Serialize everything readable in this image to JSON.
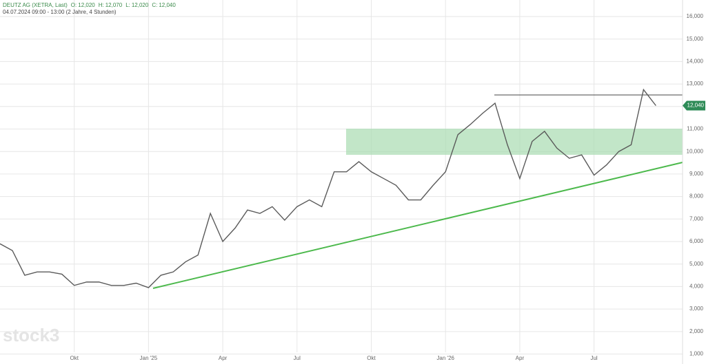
{
  "chart_data": {
    "type": "line",
    "title": "DEUTZ AG (XETRA, Last)",
    "ohlc": [
      {
        "label": "O:",
        "value": "12,020"
      },
      {
        "label": "H:",
        "value": "12,070"
      },
      {
        "label": "L:",
        "value": "12,020"
      },
      {
        "label": "C:",
        "value": "12,040"
      }
    ],
    "subtitle": "04.07.2024 09:00 - 13:00  (2 Jahre, 4 Stunden)",
    "watermark": "stock3",
    "categories": [
      null,
      null,
      null,
      null,
      null,
      null,
      "Okt",
      null,
      null,
      null,
      null,
      null,
      "Jan '25",
      null,
      null,
      null,
      null,
      null,
      "Apr",
      null,
      null,
      null,
      null,
      null,
      "Jul",
      null,
      null,
      null,
      null,
      null,
      "Okt",
      null,
      null,
      null,
      null,
      null,
      "Jan '26",
      null,
      null,
      null,
      null,
      null,
      "Apr",
      null,
      null,
      null,
      null,
      null,
      "Jul",
      null,
      null,
      null,
      null,
      null
    ],
    "series": [
      {
        "color": "#5a5a5a",
        "values": [
          5.9,
          5.6,
          4.5,
          4.65,
          4.65,
          4.55,
          4.05,
          4.2,
          4.2,
          4.05,
          4.05,
          4.15,
          3.95,
          4.5,
          4.65,
          5.1,
          5.4,
          7.25,
          6.0,
          6.6,
          7.4,
          7.25,
          7.55,
          6.95,
          7.55,
          7.85,
          7.55,
          9.1,
          9.1,
          9.55,
          9.1,
          8.8,
          8.5,
          7.85,
          7.85,
          8.5,
          9.1,
          10.75,
          11.2,
          11.7,
          12.15,
          10.3,
          8.8,
          10.45,
          10.9,
          10.15,
          9.7,
          9.85,
          8.95,
          9.4,
          10.0,
          10.3,
          12.75,
          12.04
        ]
      }
    ],
    "last_price": {
      "value": 12.04,
      "label": "12,040"
    },
    "ylim": [
      0.557,
      16.734
    ],
    "yticks": [
      {
        "value": 1,
        "label": "1,000"
      },
      {
        "value": 2,
        "label": "2,000"
      },
      {
        "value": 3,
        "label": "3,000"
      },
      {
        "value": 4,
        "label": "4,000"
      },
      {
        "value": 5,
        "label": "5,000"
      },
      {
        "value": 6,
        "label": "6,000"
      },
      {
        "value": 7,
        "label": "7,000"
      },
      {
        "value": 8,
        "label": "8,000"
      },
      {
        "value": 9,
        "label": "9,000"
      },
      {
        "value": 10,
        "label": "10,000"
      },
      {
        "value": 11,
        "label": "11,000"
      },
      {
        "value": 12,
        "label": "12,000"
      },
      {
        "value": 13,
        "label": "13,000"
      },
      {
        "value": 14,
        "label": "14,000"
      },
      {
        "value": 15,
        "label": "15,000"
      },
      {
        "value": 16,
        "label": "16,000"
      }
    ],
    "grid": true
  }
}
